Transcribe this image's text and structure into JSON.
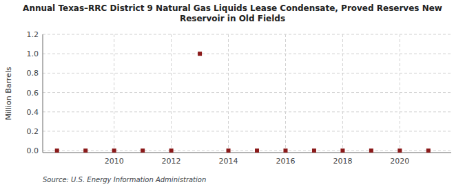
{
  "chart_data": {
    "type": "scatter",
    "title": "Annual Texas–RRC District 9 Natural Gas Liquids Lease Condensate, Proved Reserves New\nReservoir in Old Fields",
    "ylabel": "Million Barrels",
    "source": "Source: U.S. Energy Information Administration",
    "x": [
      2008,
      2009,
      2010,
      2011,
      2012,
      2013,
      2014,
      2015,
      2016,
      2017,
      2018,
      2019,
      2020,
      2021
    ],
    "values": [
      0.0,
      0.0,
      0.0,
      0.0,
      0.0,
      1.0,
      0.0,
      0.0,
      0.0,
      0.0,
      0.0,
      0.0,
      0.0,
      0.0
    ],
    "color": "#8b1a1a",
    "marker": "square",
    "xlim": [
      2007.5,
      2021.8
    ],
    "xticks": [
      2010,
      2012,
      2014,
      2016,
      2018,
      2020
    ],
    "ylim": [
      -0.02,
      1.2
    ],
    "yticks": [
      {
        "value": 0.0,
        "label": "0.0"
      },
      0.2,
      0.4,
      0.6,
      0.8,
      {
        "value": 1.0,
        "label": "1.0"
      },
      1.2
    ],
    "grid": true
  }
}
